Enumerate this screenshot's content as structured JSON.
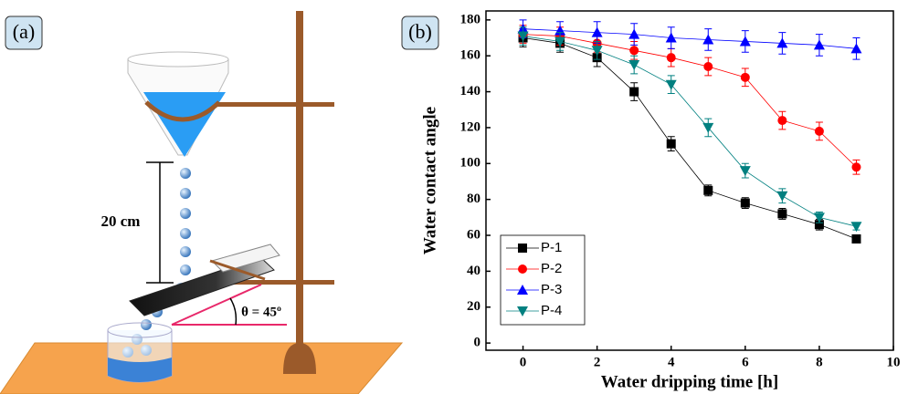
{
  "panel_a": {
    "label": "(a)",
    "distance": "20 cm",
    "angle": "θ = 45º"
  },
  "chart_data": {
    "type": "line",
    "panel_label": "(b)",
    "x_label": "Water dripping time [h]",
    "y_label": "Water contact angle",
    "x": [
      0,
      1,
      2,
      3,
      4,
      5,
      6,
      7,
      8,
      9
    ],
    "series": [
      {
        "name": "P-1",
        "color": "#000000",
        "marker": "square",
        "values": [
          170,
          167,
          159,
          140,
          111,
          85,
          78,
          72,
          66,
          58
        ],
        "errors": [
          5,
          5,
          5,
          5,
          4,
          3,
          3,
          3,
          3,
          2
        ]
      },
      {
        "name": "P-2",
        "color": "#ff0000",
        "marker": "circle",
        "values": [
          172,
          171,
          167,
          163,
          159,
          154,
          148,
          124,
          118,
          98
        ],
        "errors": [
          5,
          5,
          5,
          5,
          5,
          5,
          5,
          5,
          5,
          4
        ]
      },
      {
        "name": "P-3",
        "color": "#0000ff",
        "marker": "triangle-up",
        "values": [
          175,
          174,
          173,
          172,
          170,
          169,
          168,
          167,
          166,
          164
        ],
        "errors": [
          5,
          5,
          6,
          6,
          6,
          6,
          6,
          6,
          6,
          6
        ]
      },
      {
        "name": "P-4",
        "color": "#008080",
        "marker": "triangle-down",
        "values": [
          171,
          168,
          163,
          155,
          144,
          120,
          96,
          82,
          70,
          65
        ],
        "errors": [
          5,
          5,
          5,
          5,
          5,
          5,
          4,
          4,
          3,
          2
        ]
      }
    ],
    "xlim": [
      -1,
      10
    ],
    "xticks": [
      0,
      2,
      4,
      6,
      8,
      10
    ],
    "ylim": [
      -4,
      185
    ],
    "yticks": [
      0,
      20,
      40,
      60,
      80,
      100,
      120,
      140,
      160,
      180
    ],
    "legend": "lower-left"
  }
}
